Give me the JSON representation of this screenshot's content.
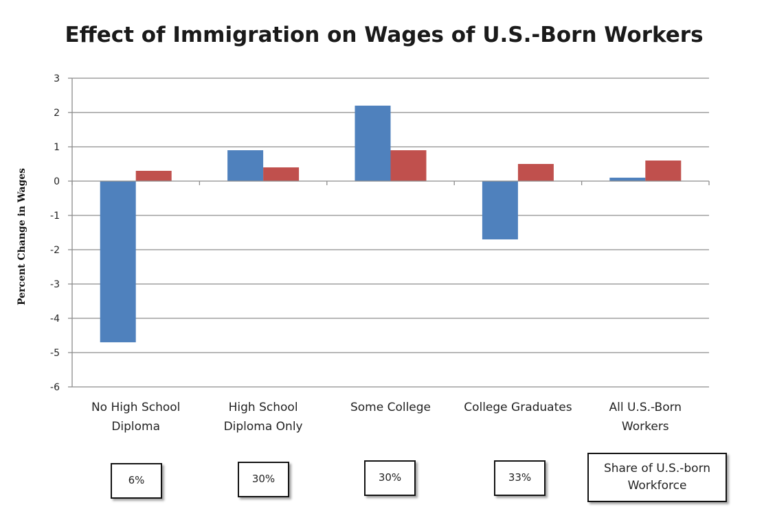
{
  "chart_data": {
    "type": "bar",
    "title": "Effect of Immigration on Wages of U.S.-Born Workers",
    "xlabel": "",
    "ylabel": "Percent Change in Wages",
    "ylim": [
      -6,
      3
    ],
    "yticks": [
      3,
      2,
      1,
      0,
      -1,
      -2,
      -3,
      -4,
      -5,
      -6
    ],
    "grid": true,
    "legend": "none",
    "categories": [
      [
        "No High School",
        "Diploma"
      ],
      [
        "High School",
        "Diploma Only"
      ],
      [
        "Some College"
      ],
      [
        "College Graduates"
      ],
      [
        "All U.S.-Born",
        "Workers"
      ]
    ],
    "series": [
      {
        "name": "Series 1",
        "color": "#4f81bd",
        "values": [
          -4.7,
          0.9,
          2.2,
          -1.7,
          0.1
        ]
      },
      {
        "name": "Series 2",
        "color": "#c0504d",
        "values": [
          0.3,
          0.4,
          0.9,
          0.5,
          0.6
        ]
      }
    ]
  },
  "shares": {
    "items": [
      "6%",
      "30%",
      "30%",
      "33%"
    ],
    "label_line1": "Share of U.S.-born",
    "label_line2": "Workforce"
  }
}
